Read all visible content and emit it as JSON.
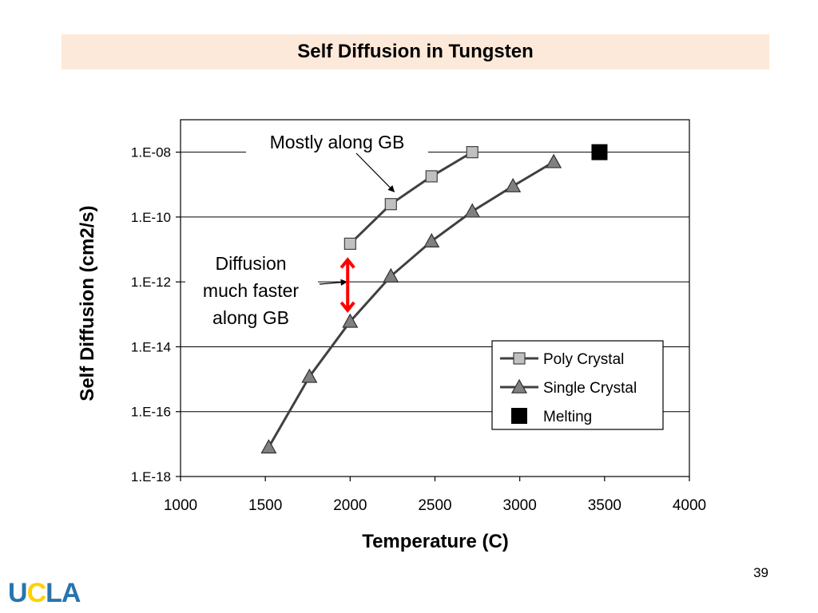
{
  "slide": {
    "title": "Self Diffusion in Tungsten",
    "page_number": "39",
    "logo_text": "UCLA"
  },
  "chart_data": {
    "type": "scatter",
    "title": "",
    "xlabel": "Temperature (C)",
    "ylabel": "Self Diffusion (cm2/s)",
    "xlim": [
      1000,
      4000
    ],
    "ylim": [
      1e-18,
      1e-07
    ],
    "y_scale": "log",
    "x_ticks": [
      "1000",
      "1500",
      "2000",
      "2500",
      "3000",
      "3500",
      "4000"
    ],
    "y_ticks": [
      "1.E-18",
      "1.E-16",
      "1.E-14",
      "1.E-12",
      "1.E-10",
      "1.E-08"
    ],
    "grid": "horizontal major gridlines",
    "legend_position": "bottom-right",
    "series": [
      {
        "name": "Poly Crystal",
        "marker": "square",
        "marker_color": "#c0c0c0",
        "line_color": "#404040",
        "x": [
          2000,
          2240,
          2480,
          2720
        ],
        "y": [
          1.5e-11,
          2.5e-10,
          1.8e-09,
          1e-08
        ]
      },
      {
        "name": "Single Crystal",
        "marker": "triangle",
        "marker_color": "#808080",
        "line_color": "#404040",
        "x": [
          1520,
          1760,
          2000,
          2240,
          2480,
          2720,
          2960,
          3200
        ],
        "y": [
          8e-18,
          1.2e-15,
          6e-14,
          1.5e-12,
          1.8e-11,
          1.5e-10,
          9e-10,
          5e-09
        ]
      },
      {
        "name": "Melting",
        "marker": "filled-square",
        "marker_color": "#000000",
        "x": [
          3470
        ],
        "y": [
          1e-08
        ]
      }
    ],
    "annotations": [
      {
        "text": "Mostly along GB",
        "points_to": {
          "x": 2260,
          "y": 6e-10
        }
      },
      {
        "text_lines": [
          "Diffusion",
          "much faster",
          "along GB"
        ],
        "points_to": {
          "x": 1980,
          "y": 1e-12
        }
      }
    ],
    "highlight_arrow": {
      "color": "#ff0000",
      "style": "double-headed",
      "x": 1990,
      "y_from": 1.5e-11,
      "y_to": 6e-14
    }
  }
}
